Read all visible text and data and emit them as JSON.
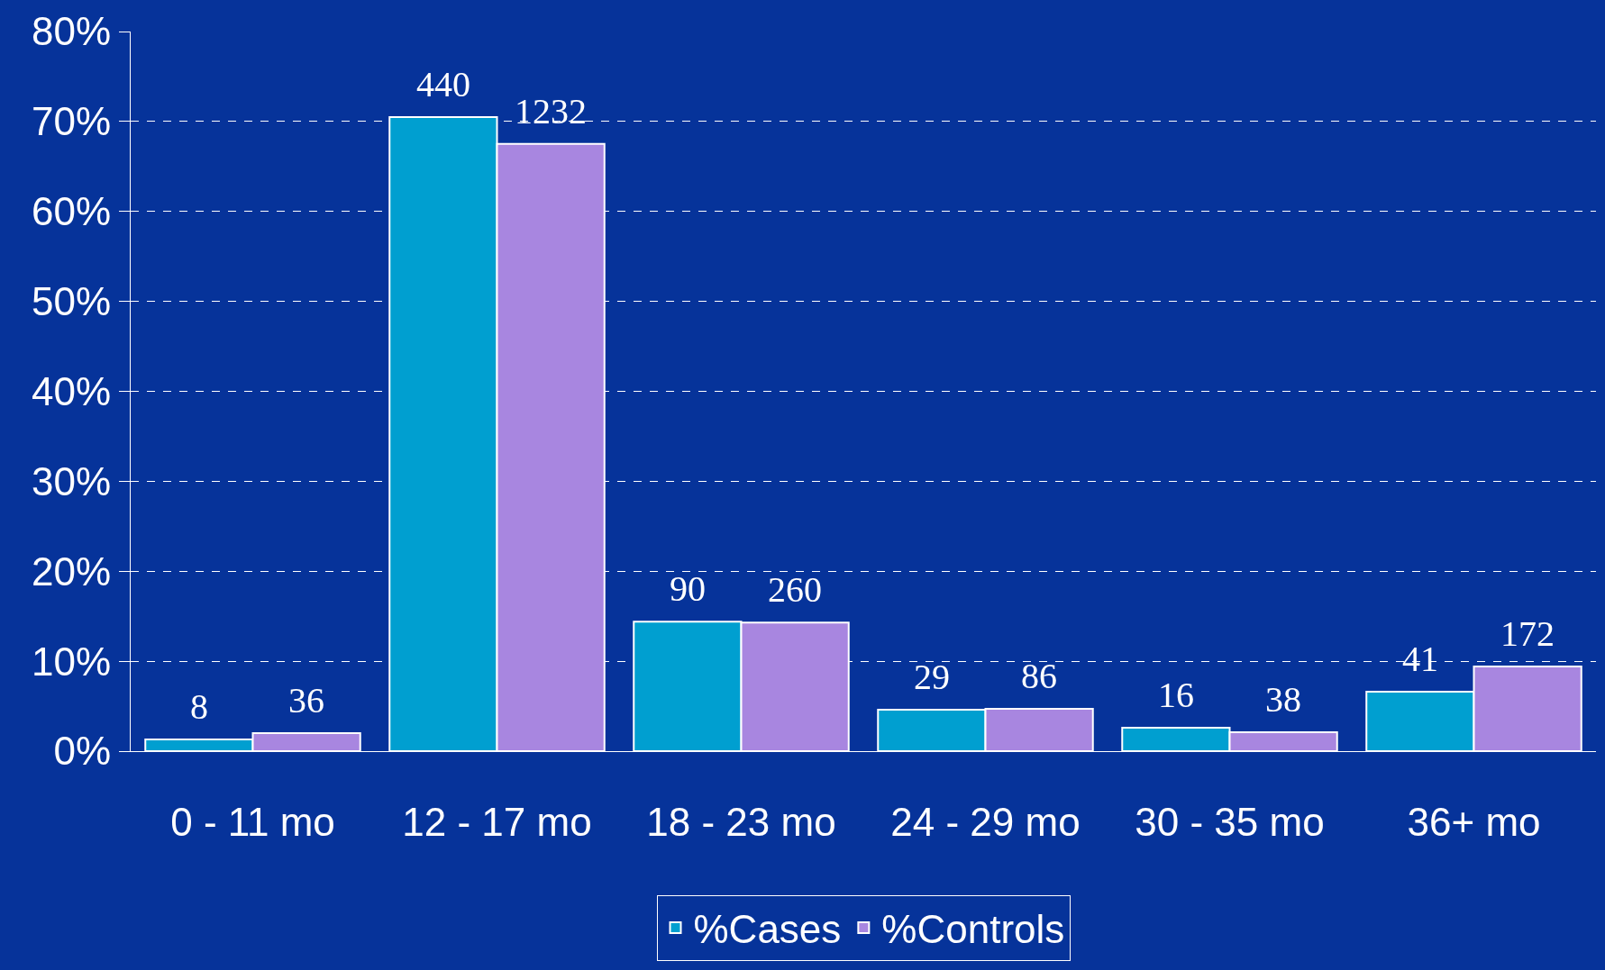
{
  "chart_data": {
    "type": "bar",
    "categories": [
      "0 - 11 mo",
      "12 - 17 mo",
      "18 - 23 mo",
      "24 - 29 mo",
      "30 - 35 mo",
      "36+ mo"
    ],
    "series": [
      {
        "name": "%Cases",
        "color": "#009fd0",
        "values": [
          1.3,
          70.5,
          14.4,
          4.6,
          2.6,
          6.6
        ]
      },
      {
        "name": "%Controls",
        "color": "#a886e0",
        "values": [
          2.0,
          67.5,
          14.3,
          4.7,
          2.1,
          9.4
        ]
      }
    ],
    "annotations": [
      {
        "text": "8",
        "x": "0 - 11 mo",
        "y": 1.3
      },
      {
        "text": "440",
        "x": "12 - 17 mo",
        "y": 70.5
      },
      {
        "text": "90",
        "x": "18 - 23 mo",
        "y": 14.4
      },
      {
        "text": "29",
        "x": "24 - 29 mo",
        "y": 4.6
      },
      {
        "text": "16",
        "x": "30 - 35 mo",
        "y": 2.6
      },
      {
        "text": "41",
        "x": "36+ mo",
        "y": 6.6
      },
      {
        "text": "36",
        "x": "0 - 11 mo",
        "y": 2.0
      },
      {
        "text": "1232",
        "x": "12 - 17 mo",
        "y": 67.5
      },
      {
        "text": "260",
        "x": "18 - 23 mo",
        "y": 14.3
      },
      {
        "text": "86",
        "x": "24 - 29 mo",
        "y": 4.7
      },
      {
        "text": "38",
        "x": "30 - 35 mo",
        "y": 2.1
      },
      {
        "text": "172",
        "x": "36+ mo",
        "y": 9.4
      }
    ],
    "ylim": [
      0,
      80
    ],
    "yticks": [
      {
        "value": 0,
        "label": "0%"
      },
      {
        "value": 10,
        "label": "10%"
      },
      {
        "value": 20,
        "label": "20%"
      },
      {
        "value": 30,
        "label": "30%"
      },
      {
        "value": 40,
        "label": "40%"
      },
      {
        "value": 50,
        "label": "50%"
      },
      {
        "value": 60,
        "label": "60%"
      },
      {
        "value": 70,
        "label": "70%"
      },
      {
        "value": 80,
        "label": "80%"
      }
    ],
    "grid": "y",
    "legend": "bottom"
  }
}
